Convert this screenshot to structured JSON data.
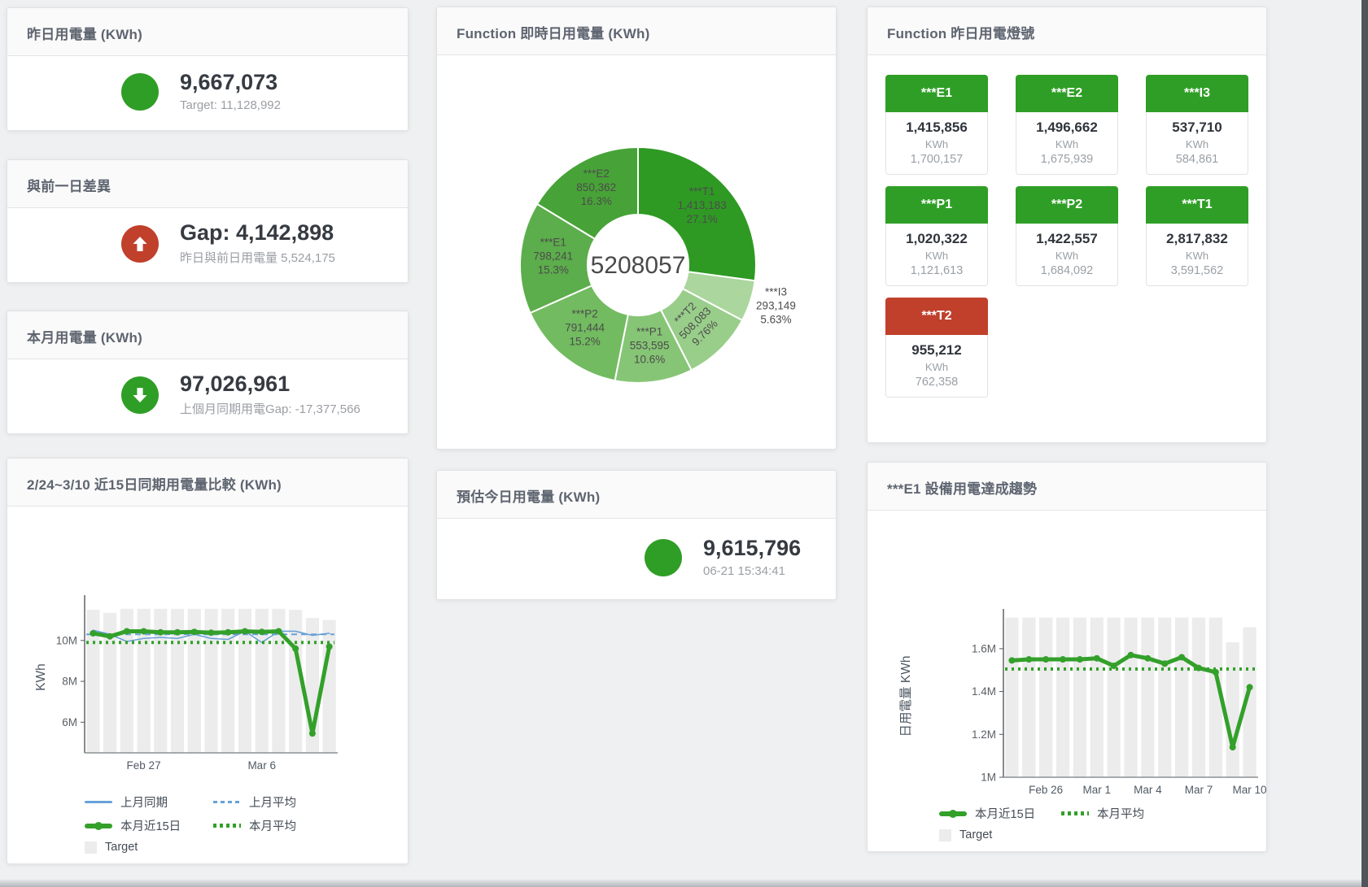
{
  "colors": {
    "green": "#2f9e26",
    "red": "#c0402c",
    "blue": "#68a1d8",
    "bar": "#ececec",
    "background": "#eef0f1",
    "tile_green": "#2e9e30",
    "donut_t1": "#2e9a23"
  },
  "panels": {
    "yesterday": {
      "title": "昨日用電量 (KWh)",
      "value": "9,667,073",
      "subtitle": "Target: 11,128,992",
      "indicator": "green-circle"
    },
    "gap_prev": {
      "title": "與前一日差異",
      "value": "Gap: 4,142,898",
      "subtitle": "昨日與前日用電量 5,524,175",
      "indicator": "red-up-arrow"
    },
    "month": {
      "title": "本月用電量 (KWh)",
      "value": "97,026,961",
      "subtitle": "上個月同期用電Gap: -17,377,566",
      "indicator": "green-down-arrow"
    },
    "estimate": {
      "title": "預估今日用電量 (KWh)",
      "value": "9,615,796",
      "subtitle": "06-21 15:34:41",
      "indicator": "green-circle"
    },
    "donut": {
      "title": "Function 即時日用電量 (KWh)"
    },
    "lights": {
      "title": "Function 昨日用電燈號",
      "unit": "KWh",
      "tiles": [
        {
          "label": "***E1",
          "value": "1,415,856",
          "target": "1,700,157",
          "status": "green"
        },
        {
          "label": "***E2",
          "value": "1,496,662",
          "target": "1,675,939",
          "status": "green"
        },
        {
          "label": "***I3",
          "value": "537,710",
          "target": "584,861",
          "status": "green"
        },
        {
          "label": "***P1",
          "value": "1,020,322",
          "target": "1,121,613",
          "status": "green"
        },
        {
          "label": "***P2",
          "value": "1,422,557",
          "target": "1,684,092",
          "status": "green"
        },
        {
          "label": "***T1",
          "value": "2,817,832",
          "target": "3,591,562",
          "status": "green"
        },
        {
          "label": "***T2",
          "value": "955,212",
          "target": "762,358",
          "status": "red"
        }
      ]
    },
    "compare": {
      "title": "2/24~3/10 近15日同期用電量比較 (KWh)"
    },
    "e1trend": {
      "title": "***E1 設備用電達成趨勢"
    }
  },
  "chart_data": [
    {
      "id": "donut",
      "type": "pie",
      "title": "Function 即時日用電量 (KWh)",
      "center_total": "5208057",
      "slices": [
        {
          "label": "***T1",
          "value": 1413183,
          "pct": "27.1%",
          "color": "#2e9a23",
          "rot": 0,
          "outside": false
        },
        {
          "label": "***I3",
          "value": 293149,
          "pct": "5.63%",
          "color": "#abd69d",
          "rot": 0,
          "outside": true
        },
        {
          "label": "***T2",
          "value": 508083,
          "pct": "9.76%",
          "color": "#99ce8a",
          "rot": -45,
          "outside": false
        },
        {
          "label": "***P1",
          "value": 553595,
          "pct": "10.6%",
          "color": "#86c575",
          "rot": 0,
          "outside": false
        },
        {
          "label": "***P2",
          "value": 791444,
          "pct": "15.2%",
          "color": "#72bb60",
          "rot": 0,
          "outside": false
        },
        {
          "label": "***E1",
          "value": 798241,
          "pct": "15.3%",
          "color": "#5cad4b",
          "rot": 0,
          "outside": false
        },
        {
          "label": "***E2",
          "value": 850362,
          "pct": "16.3%",
          "color": "#47a337",
          "rot": 0,
          "outside": false
        }
      ]
    },
    {
      "id": "compare",
      "type": "line",
      "title": "2/24~3/10 近15日同期用電量比較 (KWh)",
      "ylabel": "KWh",
      "ylim": [
        4.5,
        11.9
      ],
      "grid": false,
      "legend_position": "bottom",
      "yticks": [
        {
          "v": 6,
          "label": "6M"
        },
        {
          "v": 8,
          "label": "8M"
        },
        {
          "v": 10,
          "label": "10M"
        }
      ],
      "xticks": [
        {
          "i": 3,
          "label": "Feb 27"
        },
        {
          "i": 10,
          "label": "Mar 6"
        }
      ],
      "x_range": "Feb 24 - Mar 10 (15 days)",
      "target_bars": {
        "name": "Target",
        "color": "#ececec",
        "values": [
          11.5,
          11.35,
          11.55,
          11.55,
          11.55,
          11.55,
          11.55,
          11.55,
          11.55,
          11.55,
          11.55,
          11.55,
          11.5,
          11.1,
          11.0
        ]
      },
      "series": [
        {
          "name": "上月同期",
          "color": "#68a1d8",
          "style": "solid",
          "width": 1.6,
          "values": [
            10.5,
            10.3,
            9.95,
            10.1,
            10.15,
            10.1,
            10.3,
            10.1,
            10.05,
            10.45,
            9.9,
            10.45,
            10.45,
            10.25,
            10.35
          ]
        },
        {
          "name": "上月平均",
          "color": "#68a1d8",
          "style": "dashed",
          "width": 2,
          "constant": 10.3
        },
        {
          "name": "本月近15日",
          "color": "#33a02a",
          "style": "solid",
          "width": 5,
          "values": [
            10.35,
            10.2,
            10.45,
            10.45,
            10.4,
            10.4,
            10.42,
            10.38,
            10.4,
            10.45,
            10.42,
            10.45,
            9.6,
            5.45,
            9.7
          ]
        },
        {
          "name": "本月平均",
          "color": "#33a02a",
          "style": "dotted",
          "width": 4,
          "constant": 9.9
        }
      ],
      "legend": [
        {
          "label": "上月同期",
          "swatch": "thin",
          "color": "#68a1d8"
        },
        {
          "label": "上月平均",
          "swatch": "dash",
          "color": "#68a1d8"
        },
        {
          "label": "本月近15日",
          "swatch": "thick",
          "color": "#33a02a"
        },
        {
          "label": "本月平均",
          "swatch": "dot",
          "color": "#33a02a"
        },
        {
          "label": "Target",
          "swatch": "box",
          "color": "#ececec"
        }
      ]
    },
    {
      "id": "e1trend",
      "type": "line",
      "title": "***E1 設備用電達成趨勢",
      "ylabel": "日用電量 KWh",
      "ylim": [
        1.0,
        1.755
      ],
      "grid": false,
      "legend_position": "bottom",
      "yticks": [
        {
          "v": 1,
          "label": "1M"
        },
        {
          "v": 1.2,
          "label": "1.2M"
        },
        {
          "v": 1.4,
          "label": "1.4M"
        },
        {
          "v": 1.6,
          "label": "1.6M"
        }
      ],
      "xticks": [
        {
          "i": 2,
          "label": "Feb 26"
        },
        {
          "i": 5,
          "label": "Mar 1"
        },
        {
          "i": 8,
          "label": "Mar 4"
        },
        {
          "i": 11,
          "label": "Mar 7"
        },
        {
          "i": 14,
          "label": "Mar 10"
        }
      ],
      "x_range": "Feb 24 - Mar 10 (15 days)",
      "target_bars": {
        "name": "Target",
        "color": "#ececec",
        "values": [
          1.745,
          1.745,
          1.745,
          1.745,
          1.745,
          1.745,
          1.745,
          1.745,
          1.745,
          1.745,
          1.745,
          1.745,
          1.745,
          1.63,
          1.7
        ]
      },
      "series": [
        {
          "name": "本月近15日",
          "color": "#33a02a",
          "style": "solid",
          "width": 5,
          "values": [
            1.545,
            1.55,
            1.55,
            1.55,
            1.55,
            1.555,
            1.52,
            1.57,
            1.555,
            1.53,
            1.56,
            1.51,
            1.49,
            1.14,
            1.42
          ]
        },
        {
          "name": "本月平均",
          "color": "#33a02a",
          "style": "dotted",
          "width": 4,
          "constant": 1.505
        }
      ],
      "legend": [
        {
          "label": "本月近15日",
          "swatch": "thick",
          "color": "#33a02a"
        },
        {
          "label": "本月平均",
          "swatch": "dot",
          "color": "#33a02a"
        },
        {
          "label": "Target",
          "swatch": "box",
          "color": "#ececec"
        }
      ]
    }
  ]
}
